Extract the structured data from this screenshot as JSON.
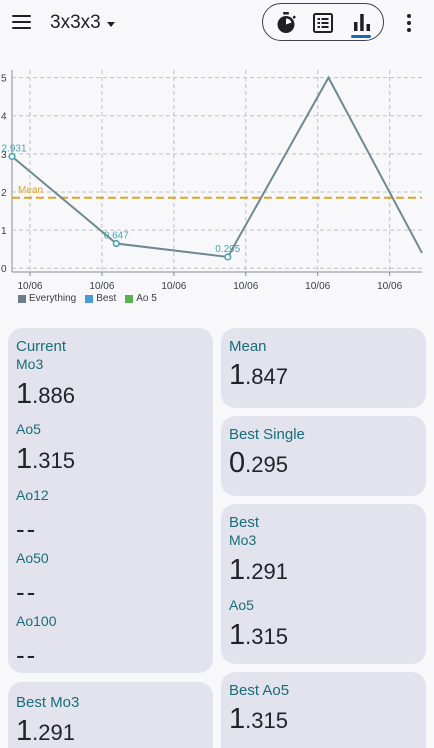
{
  "appbar": {
    "title": "3x3x3",
    "icons": [
      "menu-icon",
      "stopwatch-icon",
      "list-icon",
      "bar-chart-icon",
      "more-vert-icon"
    ]
  },
  "chart_data": {
    "type": "line",
    "title": "",
    "xlabel": "",
    "ylabel": "",
    "x_tick_labels": [
      "10/06",
      "10/06",
      "10/06",
      "10/06",
      "10/06",
      "10/06"
    ],
    "y_ticks": [
      0,
      1,
      2,
      3,
      4,
      5
    ],
    "ylim": [
      -0.1,
      5.2
    ],
    "grid": true,
    "series": [
      {
        "name": "Everything",
        "color": "#6e8a90",
        "points": [
          [
            0,
            2.931
          ],
          [
            1.45,
            0.647
          ],
          [
            3.0,
            0.295
          ],
          [
            4.4,
            5.0
          ],
          [
            5.7,
            0.4
          ]
        ]
      }
    ],
    "point_labels": [
      {
        "index": 0,
        "text": "2.931"
      },
      {
        "index": 1,
        "text": "0.647"
      },
      {
        "index": 2,
        "text": "0.295"
      }
    ],
    "mean_line": {
      "value": 1.847,
      "label": "Mean",
      "color": "#e0a526"
    },
    "legend": {
      "placement": "bottom-left",
      "items": [
        {
          "label": "Everything",
          "color": "#6e7c86"
        },
        {
          "label": "Best",
          "color": "#4a9ad6"
        },
        {
          "label": "Ao 5",
          "color": "#5bb14f"
        }
      ]
    }
  },
  "cards": {
    "current": {
      "title": "Current",
      "mo3_label": "Mo3",
      "mo3_int": "1",
      "mo3_frac": ".886",
      "ao5_label": "Ao5",
      "ao5_int": "1",
      "ao5_frac": ".315",
      "ao12_label": "Ao12",
      "ao12_value": "--",
      "ao50_label": "Ao50",
      "ao50_value": "--",
      "ao100_label": "Ao100",
      "ao100_value": "--"
    },
    "mean": {
      "title": "Mean",
      "int": "1",
      "frac": ".847"
    },
    "best_single": {
      "title": "Best Single",
      "int": "0",
      "frac": ".295"
    },
    "best": {
      "title": "Best",
      "mo3_label": "Mo3",
      "mo3_int": "1",
      "mo3_frac": ".291",
      "ao5_label": "Ao5",
      "ao5_int": "1",
      "ao5_frac": ".315"
    },
    "best_mo3": {
      "title": "Best Mo3",
      "int": "1",
      "frac": ".291"
    },
    "best_ao5": {
      "title": "Best Ao5",
      "int": "1",
      "frac": ".315"
    }
  }
}
